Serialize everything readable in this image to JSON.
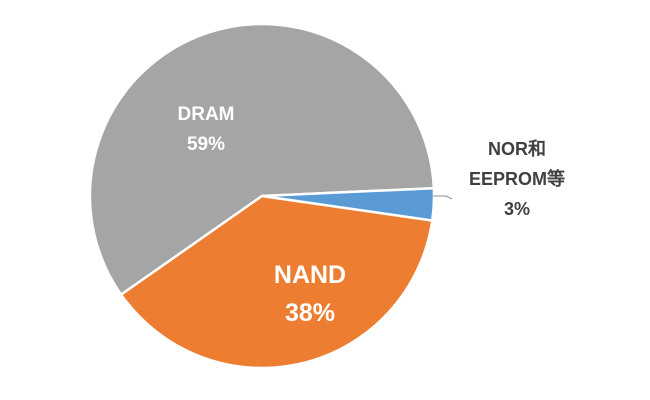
{
  "chart_data": {
    "type": "pie",
    "title": "",
    "slices": [
      {
        "label": "DRAM",
        "percent_label": "59%",
        "value": 59,
        "color": "#a5a5a5",
        "label_color": "#ffffff"
      },
      {
        "label": "NAND",
        "percent_label": "38%",
        "value": 38,
        "color": "#ed7d31",
        "label_color": "#ffffff"
      },
      {
        "label_lines": [
          "NOR和",
          "EEPROM等"
        ],
        "percent_label": "3%",
        "value": 3,
        "color": "#5b9bd5",
        "label_color": "#404040"
      }
    ],
    "legend": "none",
    "labels_shown": "inside slices; small slice labeled outside with leader line"
  }
}
